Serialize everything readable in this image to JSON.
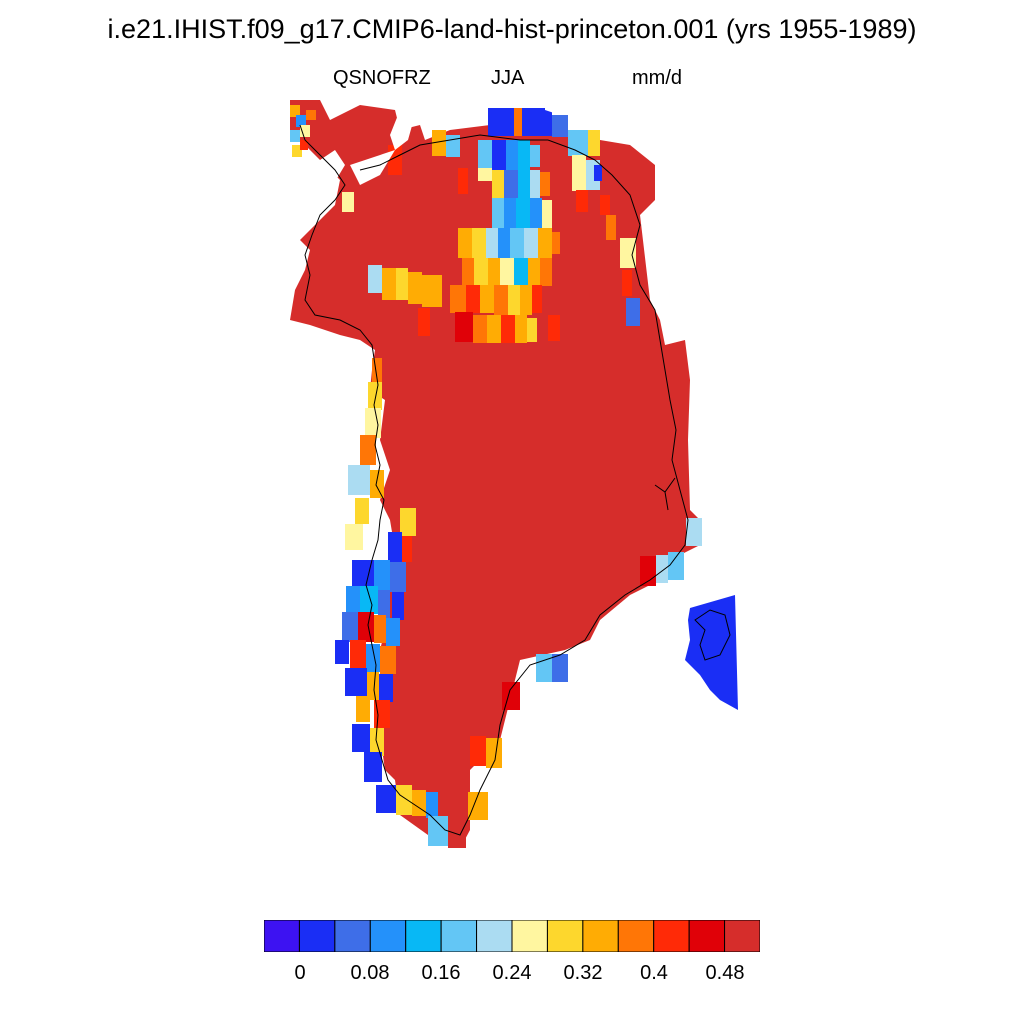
{
  "title": "i.e21.IHIST.f09_g17.CMIP6-land-hist-princeton.001 (yrs 1955-1989)",
  "variable": "QSNOFRZ",
  "season": "JJA",
  "units": "mm/d",
  "colorbar": {
    "colors": [
      "#3d12f2",
      "#1a2ef5",
      "#3e6ee8",
      "#2491fa",
      "#08b8f5",
      "#63c6f5",
      "#abdcf2",
      "#fff6a0",
      "#fdd72d",
      "#ffac04",
      "#ff7606",
      "#ff2a07",
      "#e00108",
      "#d62d2b"
    ],
    "tick_labels": [
      "0",
      "0.08",
      "0.16",
      "0.24",
      "0.32",
      "0.4",
      "0.48"
    ]
  },
  "legend_icon": "colorbar"
}
